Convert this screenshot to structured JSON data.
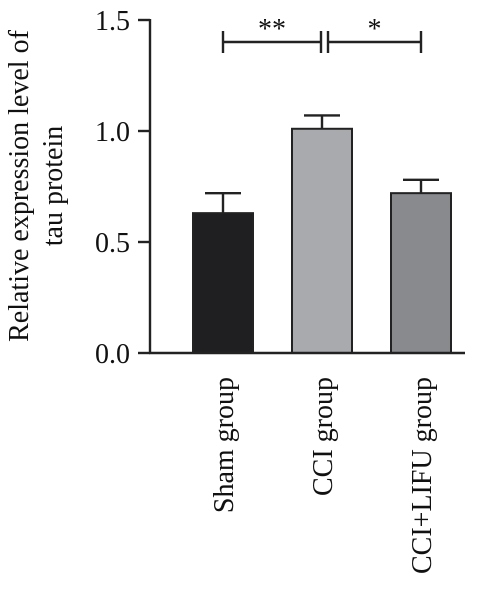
{
  "chart_data": {
    "type": "bar",
    "ylabel_lines": [
      "Relative expression level of",
      "tau protein"
    ],
    "ylim": [
      0,
      1.5
    ],
    "yticks": [
      0.0,
      0.5,
      1.0,
      1.5
    ],
    "ytick_labels": [
      "0.0",
      "0.5",
      "1.0",
      "1.5"
    ],
    "categories": [
      "Sham group",
      "CCI group",
      "CCI+LIFU group"
    ],
    "values": [
      0.63,
      1.01,
      0.72
    ],
    "errors": [
      0.09,
      0.06,
      0.06
    ],
    "bar_colors": [
      "#1f1f21",
      "#a9aaad",
      "#898a8d"
    ],
    "significance": [
      {
        "from": 0,
        "to": 1,
        "label": "**",
        "y": 1.4
      },
      {
        "from": 1,
        "to": 2,
        "label": "*",
        "y": 1.4
      }
    ],
    "grid": false,
    "legend": "none"
  }
}
